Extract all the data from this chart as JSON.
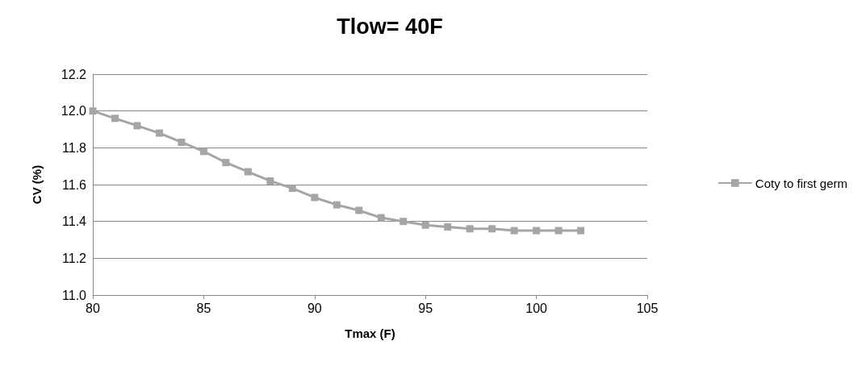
{
  "chart_data": {
    "type": "line",
    "title": "Tlow= 40F",
    "xlabel": "Tmax (F)",
    "ylabel": "CV (%)",
    "x": [
      80,
      81,
      82,
      83,
      84,
      85,
      86,
      87,
      88,
      89,
      90,
      91,
      92,
      93,
      94,
      95,
      96,
      97,
      98,
      99,
      100,
      101,
      102
    ],
    "series": [
      {
        "name": "Coty to first germ",
        "color": "#a5a5a5",
        "values": [
          12.0,
          11.96,
          11.92,
          11.88,
          11.83,
          11.78,
          11.72,
          11.67,
          11.62,
          11.58,
          11.53,
          11.49,
          11.46,
          11.42,
          11.4,
          11.38,
          11.37,
          11.36,
          11.36,
          11.35,
          11.35,
          11.35,
          11.35
        ]
      }
    ],
    "xlim": [
      80,
      105
    ],
    "xticks": [
      80,
      85,
      90,
      95,
      100,
      105
    ],
    "ylim": [
      11.0,
      12.2
    ],
    "yticks": [
      {
        "value": 11.0,
        "label": "11.0"
      },
      {
        "value": 11.2,
        "label": "11.2"
      },
      {
        "value": 11.4,
        "label": "11.4"
      },
      {
        "value": 11.6,
        "label": "11.6"
      },
      {
        "value": 11.8,
        "label": "11.8"
      },
      {
        "value": 12.0,
        "label": "12.0"
      },
      {
        "value": 12.2,
        "label": "12.2"
      }
    ],
    "grid": "y",
    "legend": "right",
    "marker": "square",
    "line_style": "solid"
  }
}
